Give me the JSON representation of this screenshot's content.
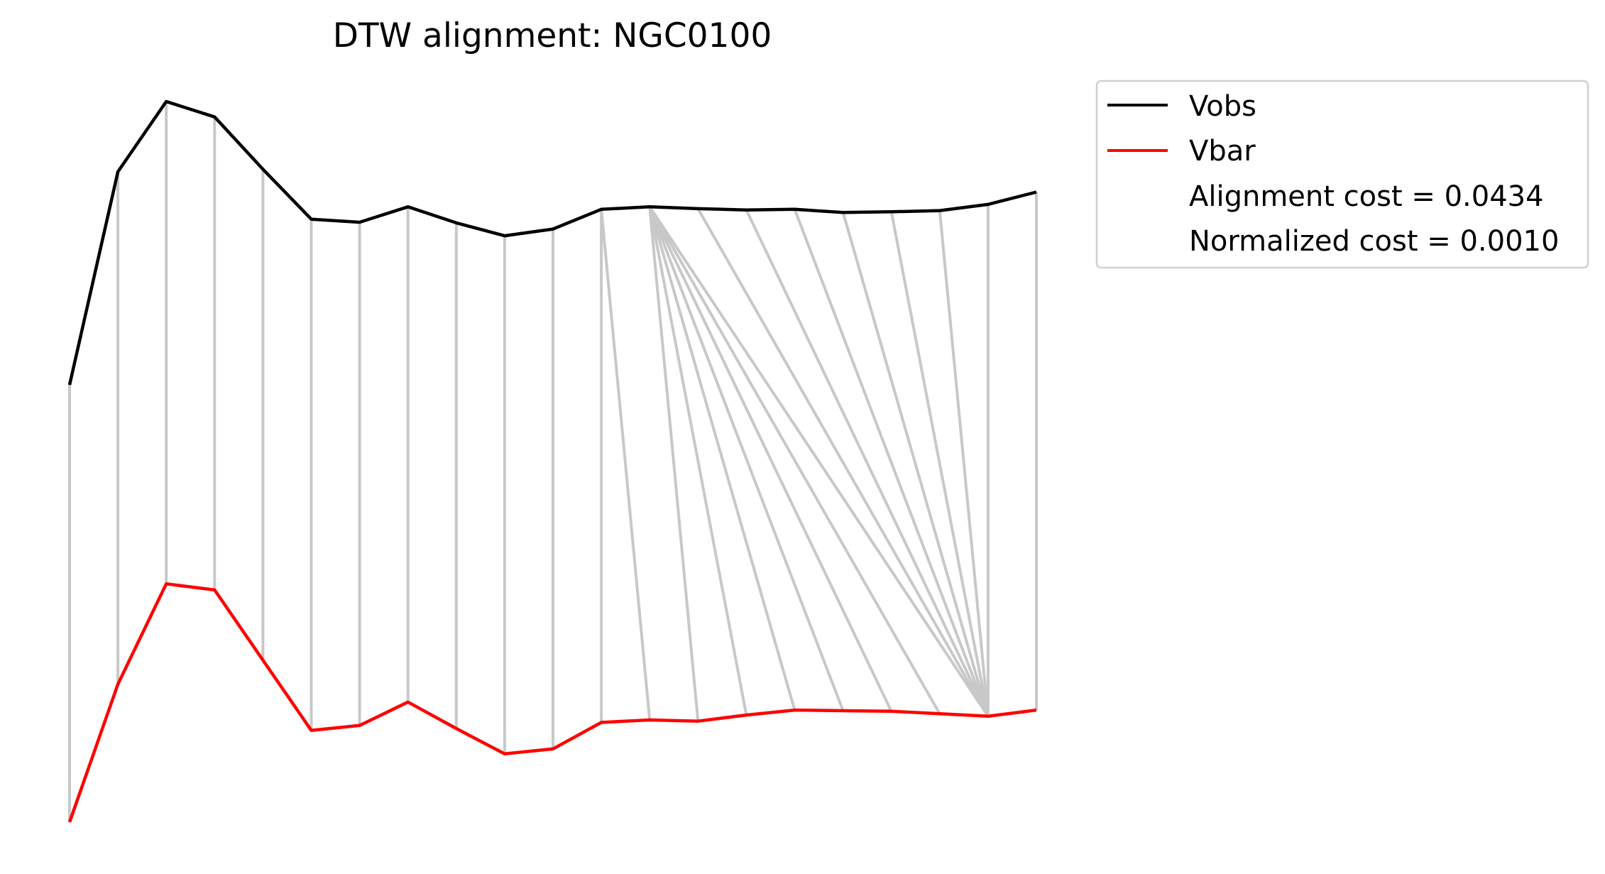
{
  "chart_data": {
    "type": "line",
    "title": "DTW alignment: NGC0100",
    "xlabel": "",
    "ylabel": "",
    "axes_visible": false,
    "grid": false,
    "legend_position": "outside-top-right",
    "n_points": 21,
    "series": [
      {
        "name": "Vobs",
        "color": "#000000",
        "values": [
          52,
          86.6,
          98.0,
          95.5,
          87.0,
          78.9,
          78.4,
          80.9,
          78.3,
          76.2,
          77.3,
          80.5,
          80.9,
          80.6,
          80.4,
          80.5,
          80.0,
          80.1,
          80.3,
          81.3,
          83.3
        ]
      },
      {
        "name": "Vbar",
        "color": "#ff0000",
        "values": [
          -19,
          3.4,
          19.7,
          18.7,
          7.3,
          -4.1,
          -3.3,
          0.5,
          -3.8,
          -7.9,
          -7.1,
          -2.8,
          -2.4,
          -2.6,
          -1.6,
          -0.8,
          -0.9,
          -1.0,
          -1.4,
          -1.8,
          -0.8
        ]
      }
    ],
    "alignment_path": [
      [
        0,
        0
      ],
      [
        1,
        1
      ],
      [
        2,
        2
      ],
      [
        3,
        3
      ],
      [
        4,
        4
      ],
      [
        5,
        5
      ],
      [
        6,
        6
      ],
      [
        7,
        7
      ],
      [
        8,
        8
      ],
      [
        9,
        9
      ],
      [
        10,
        10
      ],
      [
        11,
        11
      ],
      [
        11,
        12
      ],
      [
        12,
        13
      ],
      [
        12,
        14
      ],
      [
        12,
        15
      ],
      [
        12,
        16
      ],
      [
        12,
        17
      ],
      [
        12,
        18
      ],
      [
        12,
        19
      ],
      [
        13,
        19
      ],
      [
        14,
        19
      ],
      [
        15,
        19
      ],
      [
        16,
        19
      ],
      [
        17,
        19
      ],
      [
        18,
        19
      ],
      [
        19,
        19
      ],
      [
        20,
        20
      ]
    ],
    "alignment_line_color": "#c8c8c8",
    "legend": {
      "entries": [
        {
          "label": "Vobs",
          "color": "#000000"
        },
        {
          "label": "Vbar",
          "color": "#ff0000"
        }
      ],
      "annotations": [
        "Alignment cost = 0.0434",
        "Normalized cost = 0.0010"
      ]
    }
  }
}
